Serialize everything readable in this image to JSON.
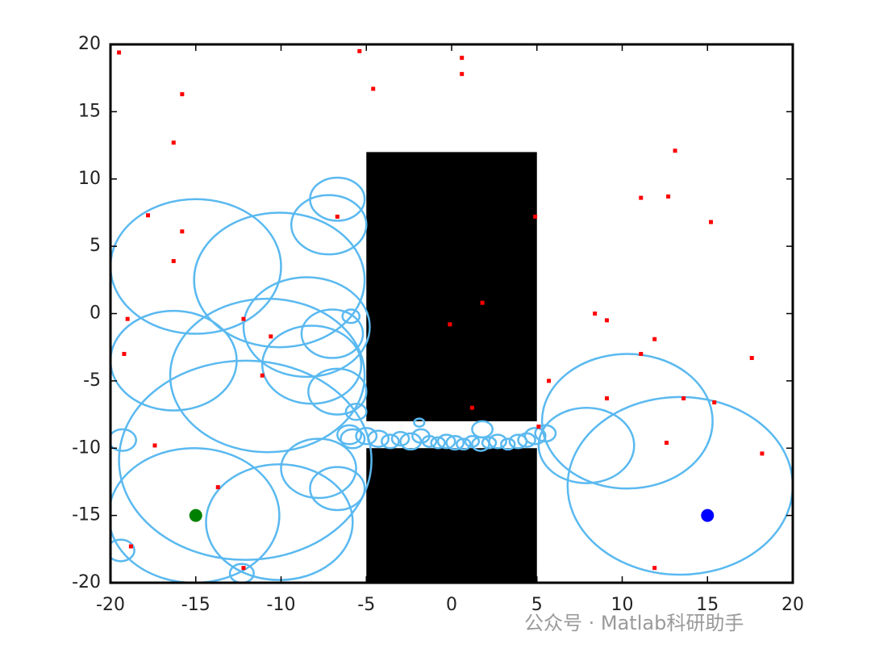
{
  "chart_data": {
    "type": "scatter",
    "xlim": [
      -20,
      20
    ],
    "ylim": [
      -20,
      20
    ],
    "xticks": [
      -20,
      -15,
      -10,
      -5,
      0,
      5,
      10,
      15,
      20
    ],
    "yticks": [
      -20,
      -15,
      -10,
      -5,
      0,
      5,
      10,
      15,
      20
    ],
    "rectangles": {
      "color": "#000000",
      "items": [
        {
          "x": [
            -5,
            5
          ],
          "y": [
            -8,
            12
          ]
        },
        {
          "x": [
            -5,
            5
          ],
          "y": [
            -20,
            -10
          ]
        }
      ]
    },
    "circles": {
      "color": "#5ab9f0",
      "x": [
        -15,
        -10.1,
        -7.2,
        -6.7,
        -16.3,
        -8.5,
        -10.8,
        -8.2,
        -7,
        -6.7,
        -12.1,
        -15.1,
        -10.1,
        -7.8,
        -6.7,
        -19.3,
        -19.4,
        -12.3,
        10.3,
        13.4,
        7.9,
        -5.8,
        -5,
        -4.3,
        -3.6,
        -3,
        -2.4,
        -1.8,
        -1.3,
        -0.8,
        -0.3,
        0.2,
        0.7,
        1.2,
        1.7,
        2.2,
        2.7,
        3.3,
        3.9,
        4.4,
        4.9,
        1.8,
        -1.9,
        -5.6,
        -5.9,
        -6,
        5.5
      ],
      "y": [
        3.5,
        2.5,
        6.6,
        8.5,
        -3.5,
        -1,
        -4.6,
        -3.8,
        -1.5,
        -5.8,
        -10.9,
        -15,
        -15.5,
        -11.5,
        -13,
        -9.4,
        -17.6,
        -19.3,
        -8,
        -12.8,
        -9.8,
        -9.3,
        -9.1,
        -9.3,
        -9.5,
        -9.3,
        -9.5,
        -9.1,
        -9.5,
        -9.6,
        -9.5,
        -9.6,
        -9.7,
        -9.5,
        -9.7,
        -9.6,
        -9.5,
        -9.7,
        -9.5,
        -9.4,
        -9.1,
        -8.6,
        -8.1,
        -7.3,
        -0.2,
        -9,
        -8.9
      ],
      "r": [
        5,
        5,
        2.2,
        1.6,
        3.7,
        3.7,
        5.7,
        2.9,
        1.8,
        1.7,
        7.4,
        5,
        4.3,
        2.2,
        1.6,
        0.8,
        0.8,
        0.7,
        5,
        6.6,
        2.8,
        0.7,
        0.6,
        0.6,
        0.5,
        0.5,
        0.6,
        0.5,
        0.4,
        0.4,
        0.5,
        0.5,
        0.4,
        0.4,
        0.5,
        0.4,
        0.5,
        0.4,
        0.5,
        0.5,
        0.6,
        0.6,
        0.3,
        0.6,
        0.5,
        0.7,
        0.6
      ]
    },
    "points": {
      "color": "#ff0000",
      "x": [
        -19.5,
        -5.4,
        0.6,
        0.6,
        -4.6,
        -15.8,
        -16.3,
        13.1,
        11.1,
        12.7,
        15.2,
        4.9,
        -6.7,
        -17.8,
        -15.8,
        -16.3,
        1.8,
        8.4,
        9.1,
        -0.1,
        -19,
        -12.2,
        -10.6,
        11.9,
        11.1,
        17.6,
        -19.2,
        -11.1,
        5.7,
        9.1,
        13.6,
        15.4,
        1.2,
        5.1,
        12.6,
        -17.4,
        18.2,
        -13.7,
        -18.8,
        -12.2,
        11.9
      ],
      "y": [
        19.4,
        19.5,
        19,
        17.8,
        16.7,
        16.3,
        12.7,
        12.1,
        8.6,
        8.7,
        6.8,
        7.2,
        7.2,
        7.3,
        6.1,
        3.9,
        0.8,
        0,
        -0.5,
        -0.8,
        -0.4,
        -0.4,
        -1.7,
        -1.9,
        -3,
        -3.3,
        -3,
        -4.6,
        -5,
        -6.3,
        -6.3,
        -6.6,
        -7,
        -8.4,
        -9.6,
        -9.8,
        -10.4,
        -12.9,
        -17.3,
        -18.9,
        -18.9
      ]
    },
    "start": {
      "x": -15,
      "y": -15,
      "color": "#008000"
    },
    "goal": {
      "x": 15,
      "y": -15,
      "color": "#0000ff"
    },
    "watermark": "公众号 · Matlab科研助手"
  }
}
